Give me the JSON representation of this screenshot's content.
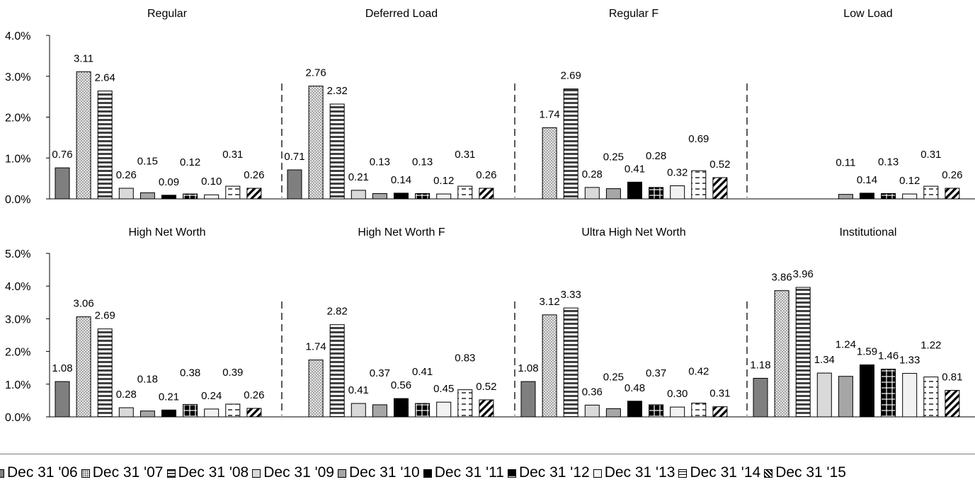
{
  "chart_data": {
    "type": "bar",
    "series_names": [
      "Dec 31 '06",
      "Dec 31 '07",
      "Dec 31 '08",
      "Dec 31 '09",
      "Dec 31 '10",
      "Dec 31 '11",
      "Dec 31 '12",
      "Dec 31 '13",
      "Dec 31 '14",
      "Dec 31 '15"
    ],
    "series_styles": [
      {
        "fill": "#7f7f7f",
        "pattern": "solid"
      },
      {
        "fill": "#d9d9d9",
        "pattern": "dots"
      },
      {
        "fill": "#ffffff",
        "pattern": "hstripes"
      },
      {
        "fill": "#d9d9d9",
        "pattern": "solid"
      },
      {
        "fill": "#a6a6a6",
        "pattern": "solid"
      },
      {
        "fill": "#000000",
        "pattern": "solid"
      },
      {
        "fill": "#000000",
        "pattern": "cross"
      },
      {
        "fill": "#f2f2f2",
        "pattern": "solid"
      },
      {
        "fill": "#ffffff",
        "pattern": "dashes"
      },
      {
        "fill": "#ffffff",
        "pattern": "diag"
      }
    ],
    "rows": [
      {
        "ylim": [
          0,
          4
        ],
        "yticks": [
          "4.0%",
          "3.0%",
          "2.0%",
          "1.0%",
          "0.0%"
        ],
        "panels": [
          {
            "title": "Regular",
            "values": [
              0.76,
              3.11,
              2.64,
              0.26,
              0.15,
              0.09,
              0.12,
              0.1,
              0.31,
              0.26
            ]
          },
          {
            "title": "Deferred Load",
            "values": [
              0.71,
              2.76,
              2.32,
              0.21,
              0.13,
              0.14,
              0.13,
              0.12,
              0.31,
              0.26
            ]
          },
          {
            "title": "Regular F",
            "values": [
              null,
              1.74,
              2.69,
              0.28,
              0.25,
              0.41,
              0.28,
              0.32,
              0.69,
              0.52
            ]
          },
          {
            "title": "Low Load",
            "values": [
              null,
              null,
              null,
              null,
              0.11,
              0.14,
              0.13,
              0.12,
              0.31,
              0.26
            ]
          }
        ]
      },
      {
        "ylim": [
          0,
          5
        ],
        "yticks": [
          "5.0%",
          "4.0%",
          "3.0%",
          "2.0%",
          "1.0%",
          "0.0%"
        ],
        "panels": [
          {
            "title": "High Net Worth",
            "values": [
              1.08,
              3.06,
              2.69,
              0.28,
              0.18,
              0.21,
              0.38,
              0.24,
              0.39,
              0.26
            ]
          },
          {
            "title": "High Net Worth F",
            "values": [
              null,
              1.74,
              2.82,
              0.41,
              0.37,
              0.56,
              0.41,
              0.45,
              0.83,
              0.52
            ]
          },
          {
            "title": "Ultra High Net Worth",
            "values": [
              1.08,
              3.12,
              3.33,
              0.36,
              0.25,
              0.48,
              0.37,
              0.3,
              0.42,
              0.31
            ]
          },
          {
            "title": "Institutional",
            "values": [
              1.18,
              3.86,
              3.96,
              1.34,
              1.24,
              1.59,
              1.46,
              1.33,
              1.22,
              0.81
            ]
          }
        ]
      }
    ]
  }
}
